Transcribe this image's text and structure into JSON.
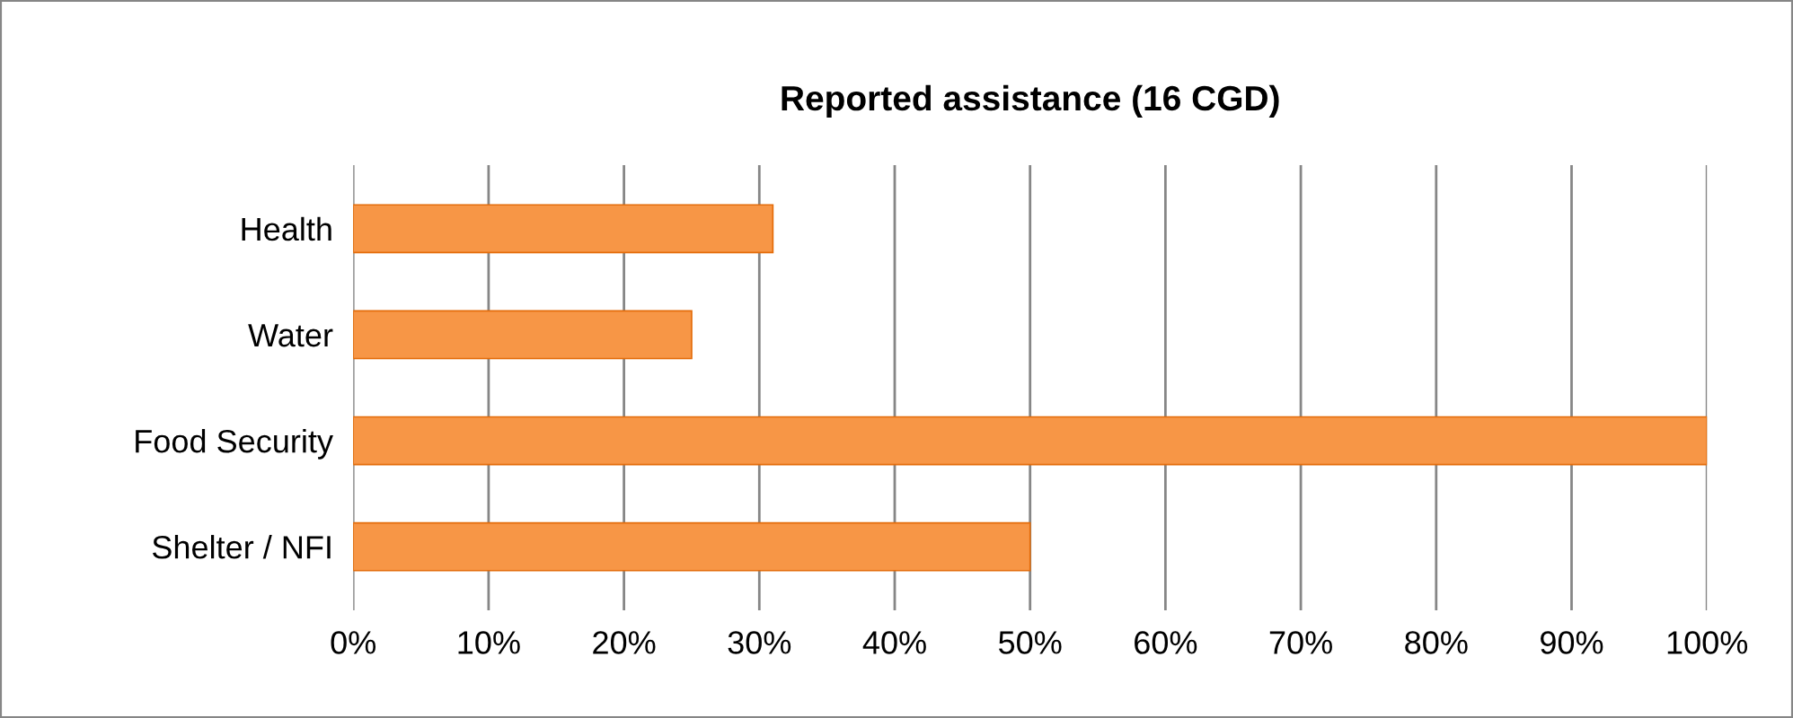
{
  "chart_data": {
    "type": "bar",
    "orientation": "horizontal",
    "title": "Reported assistance (16 CGD)",
    "categories": [
      "Health",
      "Water",
      "Food Security",
      "Shelter / NFI"
    ],
    "values": [
      31,
      25,
      100,
      50
    ],
    "color": "#f79646",
    "xlim": [
      0,
      100
    ],
    "xticks": [
      {
        "value": 0,
        "label": "0%"
      },
      {
        "value": 10,
        "label": "10%"
      },
      {
        "value": 20,
        "label": "20%"
      },
      {
        "value": 30,
        "label": "30%"
      },
      {
        "value": 40,
        "label": "40%"
      },
      {
        "value": 50,
        "label": "50%"
      },
      {
        "value": 60,
        "label": "60%"
      },
      {
        "value": 70,
        "label": "70%"
      },
      {
        "value": 80,
        "label": "80%"
      },
      {
        "value": 90,
        "label": "90%"
      },
      {
        "value": 100,
        "label": "100%"
      }
    ],
    "grid": "x",
    "legend": false
  }
}
